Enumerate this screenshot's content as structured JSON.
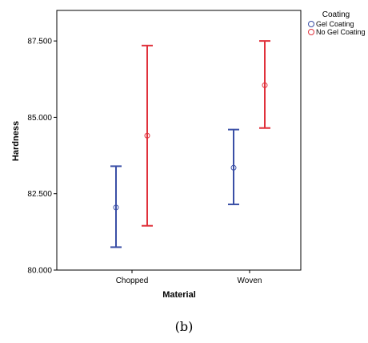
{
  "caption": "(b)",
  "chart_data": {
    "type": "errorbar",
    "xlabel": "Material",
    "ylabel": "Hardness",
    "categories": [
      "Chopped",
      "Woven"
    ],
    "ylim": [
      80.0,
      88.5
    ],
    "yticks": [
      "80.000",
      "82.500",
      "85.000",
      "87.500"
    ],
    "ytick_values": [
      80.0,
      82.5,
      85.0,
      87.5
    ],
    "grid": false,
    "legend": {
      "title": "Coating",
      "placement": "top-right-outside"
    },
    "series": [
      {
        "name": "Gel Coating",
        "color": "#3a4fa6",
        "means": [
          82.05,
          83.35
        ],
        "lower": [
          80.75,
          82.15
        ],
        "upper": [
          83.4,
          84.6
        ]
      },
      {
        "name": "No Gel Coating",
        "color": "#e0323c",
        "means": [
          84.4,
          86.05
        ],
        "lower": [
          81.45,
          84.65
        ],
        "upper": [
          87.35,
          87.5
        ]
      }
    ]
  }
}
